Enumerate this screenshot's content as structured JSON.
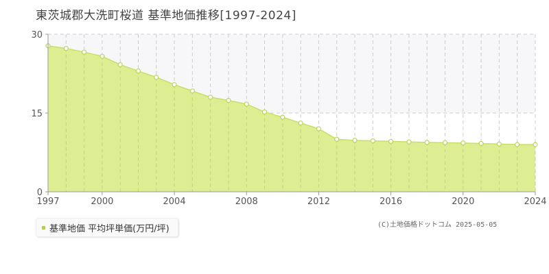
{
  "title": "東茨城郡大洗町桜道 基準地価推移[1997-2024]",
  "legend": {
    "label": "基準地価 平均坪単価(万円/坪)"
  },
  "copyright": "(C)土地価格ドットコム 2025-05-05",
  "colors": {
    "fill": "#dcee91",
    "line": "#c5e06a",
    "marker_fill": "#ffffff",
    "marker_stroke": "#b9d65a",
    "legend_swatch": "#b5d334",
    "band": "#f7f7f9",
    "grid": "#cccccc",
    "axis": "#999999"
  },
  "chart_data": {
    "type": "area",
    "title": "東茨城郡大洗町桜道 基準地価推移[1997-2024]",
    "xlabel": "",
    "ylabel": "",
    "xlim": [
      1997,
      2024
    ],
    "ylim": [
      0,
      30
    ],
    "y_ticks": [
      0,
      15,
      30
    ],
    "x_ticks": [
      1997,
      2000,
      2004,
      2008,
      2012,
      2016,
      2020,
      2024
    ],
    "grid": true,
    "legend_position": "bottom-left",
    "series": [
      {
        "name": "基準地価 平均坪単価(万円/坪)",
        "x": [
          1997,
          1998,
          1999,
          2000,
          2001,
          2002,
          2003,
          2004,
          2005,
          2006,
          2007,
          2008,
          2009,
          2010,
          2011,
          2012,
          2013,
          2014,
          2015,
          2016,
          2017,
          2018,
          2019,
          2020,
          2021,
          2022,
          2023,
          2024
        ],
        "values": [
          27.8,
          27.3,
          26.6,
          25.8,
          24.2,
          23.0,
          21.8,
          20.4,
          19.2,
          18.0,
          17.4,
          16.7,
          15.2,
          14.2,
          13.1,
          12.0,
          10.0,
          9.8,
          9.7,
          9.6,
          9.5,
          9.4,
          9.35,
          9.3,
          9.2,
          9.1,
          9.0,
          9.0
        ]
      }
    ]
  }
}
